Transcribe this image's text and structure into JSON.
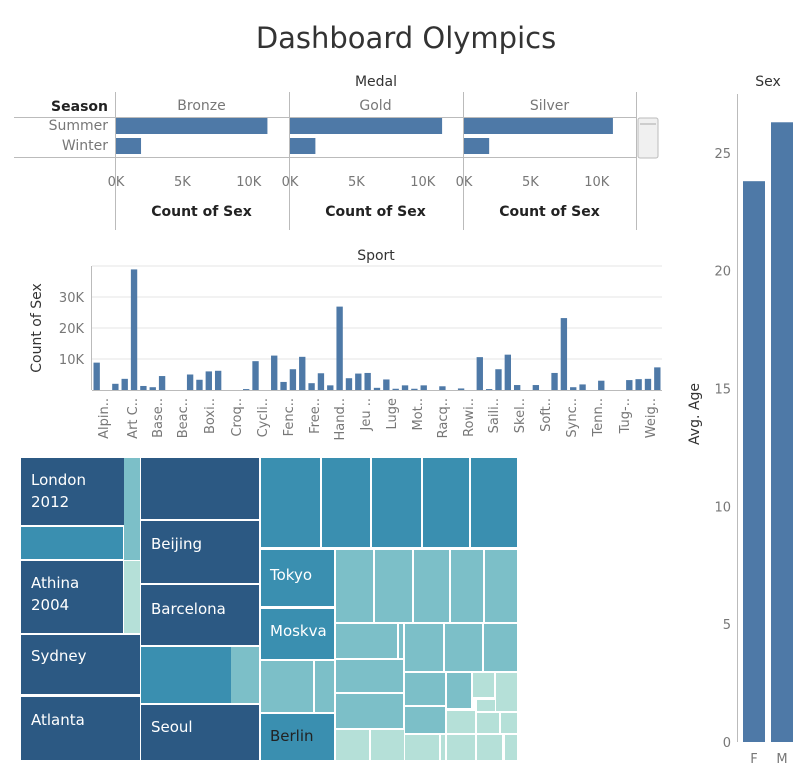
{
  "title": "Dashboard Olympics",
  "colors": {
    "bar": "#4e79a7",
    "grid": "#e6e6e6",
    "axis": "#bbbbbb",
    "treemap_dark": "#2c5983",
    "treemap_mid": "#3a8fb0",
    "treemap_light": "#7cbfc8",
    "treemap_lightest": "#b5e0d8"
  },
  "chart_data": [
    {
      "type": "bar",
      "orientation": "horizontal",
      "title": "Medal",
      "row_header": "Season",
      "facets": [
        "Bronze",
        "Gold",
        "Silver"
      ],
      "categories": [
        "Summer",
        "Winter"
      ],
      "series": [
        {
          "name": "Bronze",
          "values": [
            11409,
            1886
          ]
        },
        {
          "name": "Gold",
          "values": [
            11459,
            1913
          ]
        },
        {
          "name": "Silver",
          "values": [
            11220,
            1896
          ]
        }
      ],
      "xlabel": "Count of Sex",
      "xlim": [
        0,
        12500
      ],
      "xticks": [
        0,
        5000,
        10000
      ],
      "xtick_labels": [
        "0K",
        "5K",
        "10K"
      ]
    },
    {
      "type": "bar",
      "title": "Sport",
      "ylabel": "Count of Sex",
      "ylim": [
        0,
        40000
      ],
      "yticks": [
        10000,
        20000,
        30000
      ],
      "ytick_labels": [
        "10K",
        "20K",
        "30K"
      ],
      "xtick_labels": [
        "Alpin..",
        "Art C..",
        "Base..",
        "Beac..",
        "Boxi..",
        "Croq..",
        "Cycli..",
        "Fenc..",
        "Free..",
        "Hand..",
        "Jeu ..",
        "Luge",
        "Mot..",
        "Racq..",
        "Rowi..",
        "Saili..",
        "Skel..",
        "Soft..",
        "Sync..",
        "Tenn..",
        "Tug-..",
        "Weig.."
      ],
      "values": [
        8829,
        0,
        2000,
        3600,
        38900,
        1300,
        900,
        4500,
        0,
        0,
        5000,
        3300,
        6000,
        6200,
        0,
        0,
        300,
        9300,
        0,
        11100,
        2600,
        6700,
        10700,
        2200,
        5400,
        1500,
        26900,
        3800,
        5300,
        5500,
        700,
        3400,
        400,
        1500,
        400,
        1500,
        0,
        1200,
        0,
        500,
        0,
        10600,
        300,
        6700,
        11400,
        1600,
        0,
        1600,
        0,
        5500,
        23200,
        900,
        1800,
        0,
        3000,
        0,
        0,
        3200,
        3500,
        3600,
        7300
      ]
    },
    {
      "type": "bar",
      "title": "Sex",
      "ylabel": "Avg. Age",
      "categories": [
        "F",
        "M"
      ],
      "values": [
        23.8,
        26.3
      ],
      "ylim": [
        0,
        27.5
      ],
      "yticks": [
        0,
        5,
        10,
        15,
        20,
        25
      ],
      "ytick_labels": [
        "0",
        "5",
        "10",
        "15",
        "20",
        "25"
      ]
    },
    {
      "type": "treemap",
      "labels": [
        "London\n2012",
        "Athina\n2004",
        "Sydney",
        "Atlanta",
        "Beijing",
        "Barcelona",
        "Seoul",
        "Tokyo",
        "Moskva",
        "Berlin"
      ]
    }
  ]
}
